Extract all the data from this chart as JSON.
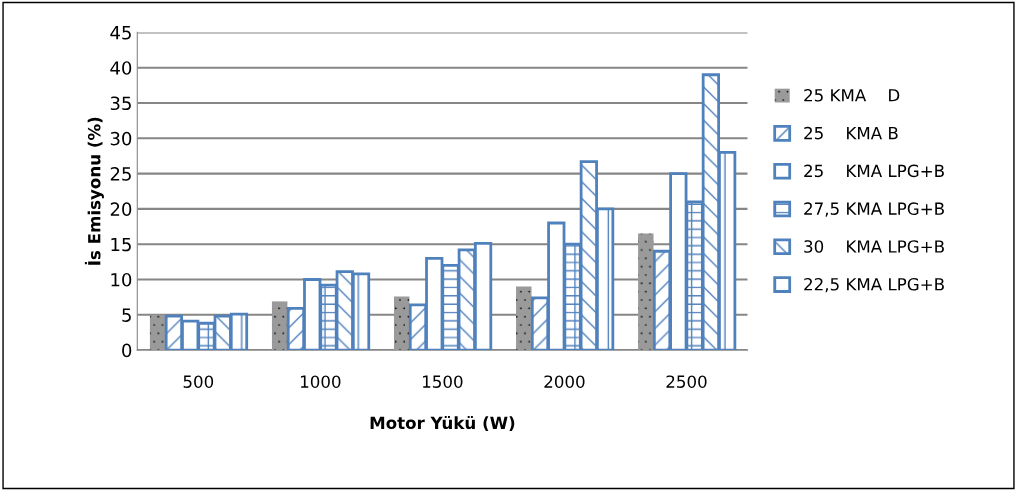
{
  "chart_data": {
    "type": "bar",
    "xlabel": "Motor Yükü (W)",
    "ylabel": "İs Emisyonu (%)",
    "categories": [
      "500",
      "1000",
      "1500",
      "2000",
      "2500"
    ],
    "series": [
      {
        "name": "25 KMA    D",
        "color": "#9a9a9a",
        "values": [
          5,
          6.9,
          7.6,
          9,
          16.5
        ]
      },
      {
        "name": "25    KMA B",
        "color": "#4f81bd",
        "values": [
          4.8,
          5.9,
          6.4,
          7.4,
          14
        ]
      },
      {
        "name": "25    KMA LPG+B",
        "color": "#4f81bd",
        "values": [
          4.1,
          10,
          13,
          18,
          25
        ]
      },
      {
        "name": "27,5 KMA LPG+B",
        "color": "#4f81bd",
        "values": [
          3.8,
          9.2,
          12,
          15,
          21
        ]
      },
      {
        "name": "30    KMA LPG+B",
        "color": "#4f81bd",
        "values": [
          4.8,
          11.1,
          14.2,
          26.7,
          39
        ]
      },
      {
        "name": "22,5 KMA LPG+B",
        "color": "#4f81bd",
        "values": [
          5.1,
          10.8,
          15.1,
          20,
          28
        ]
      }
    ],
    "ylim": [
      0,
      45
    ],
    "yticks": [
      0,
      5,
      10,
      15,
      20,
      25,
      30,
      35,
      40,
      45
    ],
    "grid": "y",
    "legend": "right"
  }
}
